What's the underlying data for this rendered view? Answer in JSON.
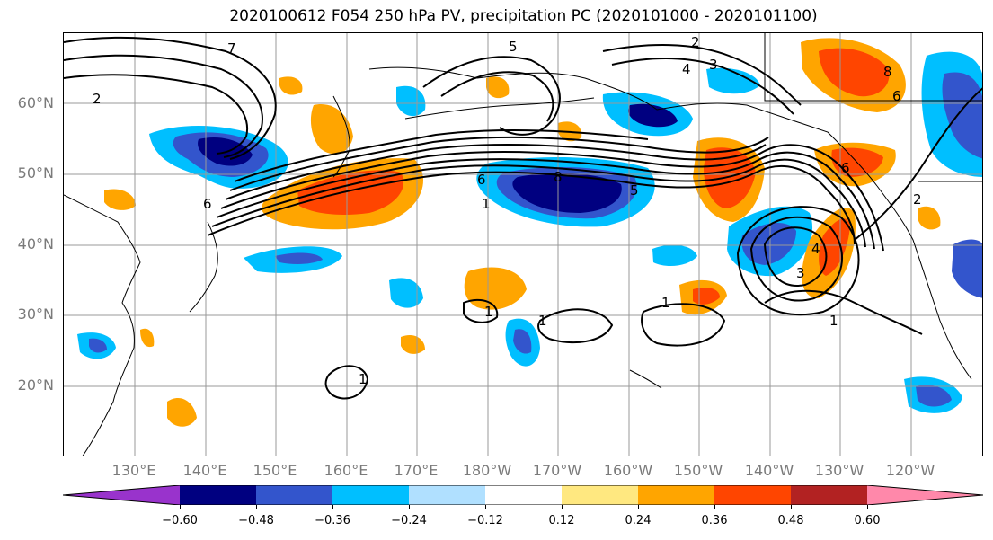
{
  "title": "2020100612 F054 250 hPa PV, precipitation PC (2020101000 - 2020101100)",
  "map": {
    "lat_labels": [
      "60°N",
      "50°N",
      "40°N",
      "30°N",
      "20°N"
    ],
    "lon_labels": [
      "130°E",
      "140°E",
      "150°E",
      "160°E",
      "170°E",
      "180°W",
      "170°W",
      "160°W",
      "150°W",
      "140°W",
      "130°W",
      "120°W"
    ],
    "contour_labels": [
      "7",
      "2",
      "5",
      "2",
      "4",
      "3",
      "6",
      "8",
      "6",
      "6",
      "5",
      "8",
      "6",
      "1",
      "4",
      "3",
      "1",
      "1",
      "1",
      "1",
      "1",
      "2"
    ]
  },
  "colorbar": {
    "tick_labels": [
      "−0.60",
      "−0.48",
      "−0.36",
      "−0.24",
      "−0.12",
      "0.12",
      "0.24",
      "0.36",
      "0.48",
      "0.60"
    ],
    "colors": [
      "#9933cc",
      "#000080",
      "#3355cc",
      "#00bfff",
      "#b0e0ff",
      "#ffffff",
      "#ffe880",
      "#ffa500",
      "#ff4500",
      "#b22222",
      "#ff88aa"
    ]
  }
}
